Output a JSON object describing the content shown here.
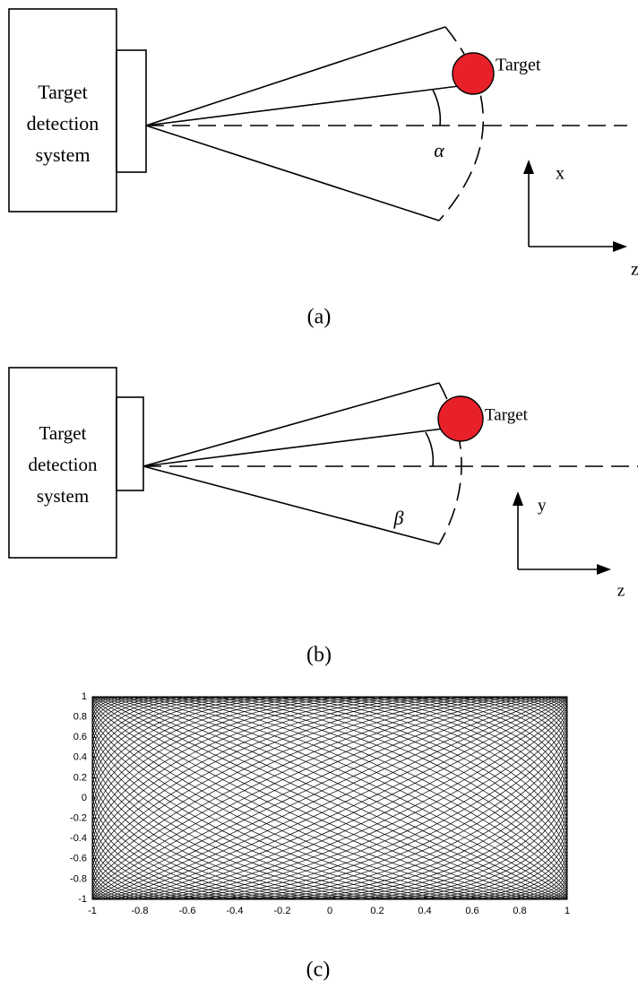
{
  "panels": [
    {
      "system_label": [
        "Target",
        "detection",
        "system"
      ],
      "target_label": "Target",
      "angle_label": "α",
      "vertical_axis": "x",
      "horizontal_axis": "z",
      "caption": "(a)"
    },
    {
      "system_label": [
        "Target",
        "detection",
        "system"
      ],
      "target_label": "Target",
      "angle_label": "β",
      "vertical_axis": "y",
      "horizontal_axis": "z",
      "caption": "(b)"
    }
  ],
  "plot": {
    "xlim": [
      -1,
      1
    ],
    "ylim": [
      -1,
      1
    ],
    "xticks": [
      -1,
      -0.8,
      -0.6,
      -0.4,
      -0.2,
      0,
      0.2,
      0.4,
      0.6,
      0.8,
      1
    ],
    "yticks": [
      -1,
      -0.8,
      -0.6,
      -0.4,
      -0.2,
      0,
      0.2,
      0.4,
      0.6,
      0.8,
      1
    ],
    "caption": "(c)"
  }
}
